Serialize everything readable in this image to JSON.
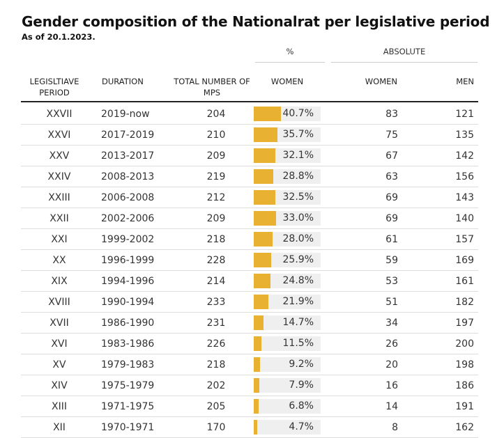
{
  "title": "Gender composition of the Nationalrat per legislative period",
  "subtitle": "As of 20.1.2023.",
  "column_groups": {
    "percent": "%",
    "absolute": "ABSOLUTE"
  },
  "headers": {
    "period": "LEGISLTIAVE PERIOD",
    "duration": "DURATION",
    "total": "TOTAL NUMBER OF MPS",
    "pct_women": "WOMEN",
    "abs_women": "WOMEN",
    "abs_men": "MEN"
  },
  "colors": {
    "bar": "#e8b132",
    "bar_track": "#efefef",
    "rule": "#222222"
  },
  "chart_data": {
    "type": "table",
    "title": "Gender composition of the Nationalrat per legislative period",
    "subtitle": "As of 20.1.2023.",
    "columns": [
      "LEGISLTIAVE PERIOD",
      "DURATION",
      "TOTAL NUMBER OF MPS",
      "% WOMEN",
      "ABSOLUTE WOMEN",
      "ABSOLUTE MEN"
    ],
    "rows": [
      {
        "period": "XXVII",
        "duration": "2019-now",
        "total": "204",
        "pct": 40.7,
        "pct_label": "40.7%",
        "women": "83",
        "men": "121"
      },
      {
        "period": "XXVI",
        "duration": "2017-2019",
        "total": "210",
        "pct": 35.7,
        "pct_label": "35.7%",
        "women": "75",
        "men": "135"
      },
      {
        "period": "XXV",
        "duration": "2013-2017",
        "total": "209",
        "pct": 32.1,
        "pct_label": "32.1%",
        "women": "67",
        "men": "142"
      },
      {
        "period": "XXIV",
        "duration": "2008-2013",
        "total": "219",
        "pct": 28.8,
        "pct_label": "28.8%",
        "women": "63",
        "men": "156"
      },
      {
        "period": "XXIII",
        "duration": "2006-2008",
        "total": "212",
        "pct": 32.5,
        "pct_label": "32.5%",
        "women": "69",
        "men": "143"
      },
      {
        "period": "XXII",
        "duration": "2002-2006",
        "total": "209",
        "pct": 33.0,
        "pct_label": "33.0%",
        "women": "69",
        "men": "140"
      },
      {
        "period": "XXI",
        "duration": "1999-2002",
        "total": "218",
        "pct": 28.0,
        "pct_label": "28.0%",
        "women": "61",
        "men": "157"
      },
      {
        "period": "XX",
        "duration": "1996-1999",
        "total": "228",
        "pct": 25.9,
        "pct_label": "25.9%",
        "women": "59",
        "men": "169"
      },
      {
        "period": "XIX",
        "duration": "1994-1996",
        "total": "214",
        "pct": 24.8,
        "pct_label": "24.8%",
        "women": "53",
        "men": "161"
      },
      {
        "period": "XVIII",
        "duration": "1990-1994",
        "total": "233",
        "pct": 21.9,
        "pct_label": "21.9%",
        "women": "51",
        "men": "182"
      },
      {
        "period": "XVII",
        "duration": "1986-1990",
        "total": "231",
        "pct": 14.7,
        "pct_label": "14.7%",
        "women": "34",
        "men": "197"
      },
      {
        "period": "XVI",
        "duration": "1983-1986",
        "total": "226",
        "pct": 11.5,
        "pct_label": "11.5%",
        "women": "26",
        "men": "200"
      },
      {
        "period": "XV",
        "duration": "1979-1983",
        "total": "218",
        "pct": 9.2,
        "pct_label": "9.2%",
        "women": "20",
        "men": "198"
      },
      {
        "period": "XIV",
        "duration": "1975-1979",
        "total": "202",
        "pct": 7.9,
        "pct_label": "7.9%",
        "women": "16",
        "men": "186"
      },
      {
        "period": "XIII",
        "duration": "1971-1975",
        "total": "205",
        "pct": 6.8,
        "pct_label": "6.8%",
        "women": "14",
        "men": "191"
      },
      {
        "period": "XII",
        "duration": "1970-1971",
        "total": "170",
        "pct": 4.7,
        "pct_label": "4.7%",
        "women": "8",
        "men": "162"
      }
    ]
  }
}
